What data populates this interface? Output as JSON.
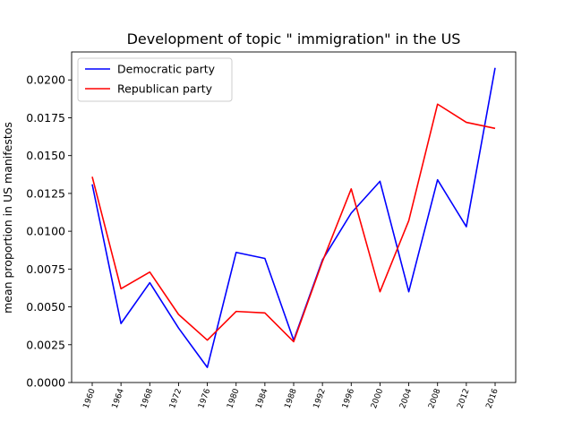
{
  "chart_data": {
    "type": "line",
    "title": "Development of topic \" immigration\" in the US",
    "xlabel": "",
    "ylabel": "mean proportion in US manifestos",
    "categories": [
      "1960",
      "1964",
      "1968",
      "1972",
      "1976",
      "1980",
      "1984",
      "1988",
      "1992",
      "1996",
      "2000",
      "2004",
      "2008",
      "2012",
      "2016"
    ],
    "ylim": [
      0,
      0.02185
    ],
    "yticks": [
      "0.0000",
      "0.0025",
      "0.0050",
      "0.0075",
      "0.0100",
      "0.0125",
      "0.0150",
      "0.0175",
      "0.0200"
    ],
    "series": [
      {
        "name": "Democratic party",
        "color": "#0000ff",
        "values": [
          0.0131,
          0.0039,
          0.0066,
          0.0036,
          0.001,
          0.0086,
          0.0082,
          0.0028,
          0.0081,
          0.0112,
          0.0133,
          0.006,
          0.0134,
          0.0103,
          0.0208
        ]
      },
      {
        "name": "Republican party",
        "color": "#ff0000",
        "values": [
          0.0136,
          0.0062,
          0.0073,
          0.0045,
          0.0028,
          0.0047,
          0.0046,
          0.0027,
          0.008,
          0.0128,
          0.006,
          0.0107,
          0.0184,
          0.0172,
          0.0168
        ]
      }
    ],
    "grid": false,
    "legend_position": "upper-left"
  }
}
